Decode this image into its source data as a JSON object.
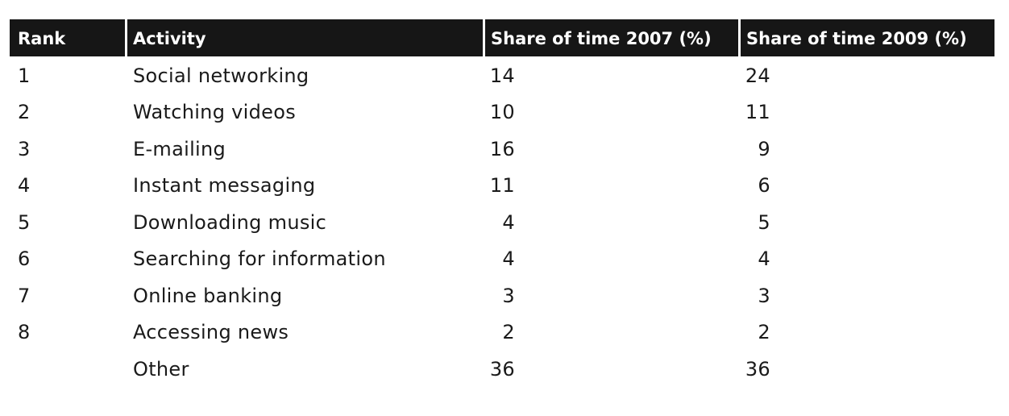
{
  "chart_data": {
    "type": "table",
    "columns": [
      "Rank",
      "Activity",
      "Share of time 2007 (%)",
      "Share of time 2009 (%)"
    ],
    "rows": [
      {
        "rank": "1",
        "activity": "Social networking",
        "y2007": 14,
        "y2009": 24
      },
      {
        "rank": "2",
        "activity": "Watching videos",
        "y2007": 10,
        "y2009": 11
      },
      {
        "rank": "3",
        "activity": "E-mailing",
        "y2007": 16,
        "y2009": 9
      },
      {
        "rank": "4",
        "activity": "Instant messaging",
        "y2007": 11,
        "y2009": 6
      },
      {
        "rank": "5",
        "activity": "Downloading music",
        "y2007": 4,
        "y2009": 5
      },
      {
        "rank": "6",
        "activity": "Searching for information",
        "y2007": 4,
        "y2009": 4
      },
      {
        "rank": "7",
        "activity": "Online banking",
        "y2007": 3,
        "y2009": 3
      },
      {
        "rank": "8",
        "activity": "Accessing news",
        "y2007": 2,
        "y2009": 2
      },
      {
        "rank": "",
        "activity": "Other",
        "y2007": 36,
        "y2009": 36
      }
    ]
  },
  "colors": {
    "header_background": "#161616",
    "header_text": "#ffffff",
    "body_text": "#1a1a1a"
  }
}
